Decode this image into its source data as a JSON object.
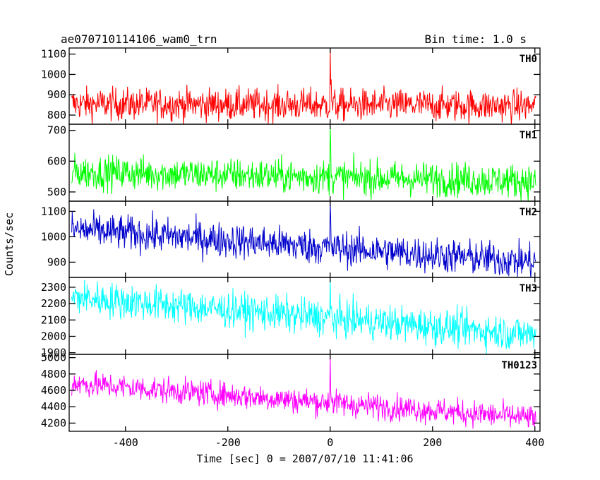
{
  "header": {
    "title": "ae070710114106_wam0_trn",
    "bin_time": "Bin time: 1.0 s"
  },
  "chart_data": {
    "type": "line",
    "xlabel": "Time [sec] 0 = 2007/07/10 11:41:06",
    "ylabel": "Counts/sec",
    "xlim": [
      -510,
      410
    ],
    "x_ticks": [
      "-400",
      "-200",
      "0",
      "200",
      "400"
    ],
    "x_tick_values": [
      -400,
      -200,
      0,
      200,
      400
    ],
    "burst_time": 0,
    "panels": [
      {
        "name": "TH0",
        "color": "#ff0000",
        "ylim": [
          755,
          1130
        ],
        "y_ticks": [
          "800",
          "900",
          "1000",
          "1100"
        ],
        "y_tick_values": [
          800,
          900,
          1000,
          1100
        ],
        "baseline_start": 855,
        "baseline_end": 845,
        "noise": 40,
        "peak": 1130
      },
      {
        "name": "TH1",
        "color": "#00ff00",
        "ylim": [
          470,
          720
        ],
        "y_ticks": [
          "500",
          "600",
          "700"
        ],
        "y_tick_values": [
          500,
          600,
          700
        ],
        "baseline_start": 565,
        "baseline_end": 535,
        "noise": 28,
        "peak": 720
      },
      {
        "name": "TH2",
        "color": "#0000cc",
        "ylim": [
          840,
          1140
        ],
        "y_ticks": [
          "900",
          "1000",
          "1100"
        ],
        "y_tick_values": [
          900,
          1000,
          1100
        ],
        "baseline_start": 1030,
        "baseline_end": 900,
        "noise": 35,
        "peak": 1140
      },
      {
        "name": "TH3",
        "color": "#00ffff",
        "ylim": [
          1890,
          2360
        ],
        "y_ticks": [
          "1900",
          "2000",
          "2100",
          "2200",
          "2300"
        ],
        "y_tick_values": [
          1900,
          2000,
          2100,
          2200,
          2300
        ],
        "baseline_start": 2240,
        "baseline_end": 2010,
        "noise": 55,
        "peak": 2360
      },
      {
        "name": "TH0123",
        "color": "#ff00ff",
        "ylim": [
          4100,
          5040
        ],
        "y_ticks": [
          "4200",
          "4400",
          "4600",
          "4800",
          "5000"
        ],
        "y_tick_values": [
          4200,
          4400,
          4600,
          4800,
          5000
        ],
        "baseline_start": 4690,
        "baseline_end": 4260,
        "noise": 80,
        "peak": 5040
      }
    ]
  }
}
